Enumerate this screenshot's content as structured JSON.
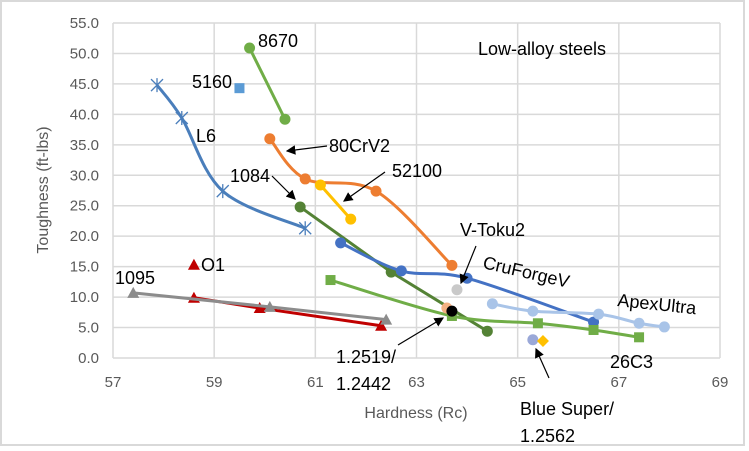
{
  "chart_data": {
    "type": "scatter",
    "title": "Low-alloy steels",
    "xlabel": "Hardness (Rc)",
    "ylabel": "Toughness (ft-lbs)",
    "xlim": [
      57,
      69
    ],
    "ylim": [
      0,
      55
    ],
    "xticks": [
      "57",
      "59",
      "61",
      "63",
      "65",
      "67",
      "69"
    ],
    "yticks": [
      "0.0",
      "5.0",
      "10.0",
      "15.0",
      "20.0",
      "25.0",
      "30.0",
      "35.0",
      "40.0",
      "45.0",
      "50.0",
      "55.0"
    ],
    "grid": true,
    "legend": "none",
    "series": [
      {
        "name": "L6",
        "color": "#4a7ebb",
        "marker": "star",
        "smooth": true,
        "points": [
          [
            57.87,
            44.8
          ],
          [
            58.36,
            39.4
          ],
          [
            59.17,
            27.4
          ],
          [
            60.8,
            21.3
          ]
        ]
      },
      {
        "name": "5160",
        "color": "#5b9bd5",
        "marker": "square",
        "smooth": false,
        "points": [
          [
            59.5,
            44.3
          ]
        ]
      },
      {
        "name": "8670",
        "color": "#70ad47",
        "marker": "circle",
        "smooth": false,
        "points": [
          [
            59.7,
            50.9
          ],
          [
            60.4,
            39.2
          ]
        ]
      },
      {
        "name": "80CrV2",
        "color": "#ed7d31",
        "marker": "circle",
        "smooth": true,
        "points": [
          [
            60.1,
            36.0
          ],
          [
            60.8,
            29.4
          ],
          [
            62.2,
            27.4
          ],
          [
            63.7,
            15.2
          ]
        ]
      },
      {
        "name": "52100",
        "color": "#ffc000",
        "marker": "circle",
        "smooth": false,
        "points": [
          [
            61.1,
            28.4
          ],
          [
            61.7,
            22.8
          ]
        ]
      },
      {
        "name": "1084",
        "color": "#548235",
        "marker": "circle",
        "smooth": false,
        "points": [
          [
            60.7,
            24.8
          ],
          [
            62.5,
            14.1
          ],
          [
            64.4,
            4.4
          ]
        ]
      },
      {
        "name": "CruForgeV",
        "color": "#4472c4",
        "marker": "circle",
        "smooth": true,
        "points": [
          [
            61.5,
            18.9
          ],
          [
            62.7,
            14.3
          ],
          [
            64.0,
            13.1
          ],
          [
            66.5,
            5.9
          ]
        ]
      },
      {
        "name": "V-Toku2",
        "color": "#c9c9c9",
        "marker": "circle",
        "smooth": false,
        "points": [
          [
            63.8,
            11.2
          ]
        ]
      },
      {
        "name": "26C3",
        "color": "#70ad47",
        "marker": "square",
        "smooth": true,
        "points": [
          [
            61.3,
            12.8
          ],
          [
            63.7,
            6.9
          ],
          [
            65.4,
            5.7
          ],
          [
            66.5,
            4.6
          ],
          [
            67.4,
            3.4
          ]
        ]
      },
      {
        "name": "ApexUltra",
        "color": "#a9c4e8",
        "marker": "circle",
        "smooth": true,
        "points": [
          [
            64.5,
            8.9
          ],
          [
            65.3,
            7.7
          ],
          [
            66.6,
            7.2
          ],
          [
            67.4,
            5.7
          ],
          [
            67.9,
            5.1
          ]
        ]
      },
      {
        "name": "1.2519",
        "color": "#f4b183",
        "marker": "circle",
        "smooth": false,
        "points": [
          [
            63.6,
            8.2
          ]
        ]
      },
      {
        "name": "1.2442",
        "color": "#000000",
        "marker": "circle",
        "smooth": false,
        "points": [
          [
            63.7,
            7.7
          ]
        ]
      },
      {
        "name": "Blue Super",
        "color": "#9aa8d8",
        "marker": "circle",
        "smooth": false,
        "points": [
          [
            65.3,
            3.0
          ]
        ]
      },
      {
        "name": "1.2562",
        "color": "#ffc000",
        "marker": "diamond",
        "smooth": false,
        "points": [
          [
            65.5,
            2.8
          ]
        ]
      },
      {
        "name": "O1",
        "color": "#c00000",
        "marker": "triangle",
        "smooth": false,
        "points": [
          [
            58.6,
            15.3
          ]
        ]
      },
      {
        "name": "O1 line",
        "color": "#c00000",
        "marker": "triangle",
        "smooth": false,
        "points": [
          [
            58.6,
            9.9
          ],
          [
            59.9,
            8.2
          ],
          [
            62.3,
            5.3
          ]
        ]
      },
      {
        "name": "1095",
        "color": "#8c8c8c",
        "marker": "triangle",
        "smooth": false,
        "points": [
          [
            57.4,
            10.7
          ],
          [
            60.1,
            8.4
          ],
          [
            62.4,
            6.3
          ]
        ]
      }
    ],
    "annotations": {
      "l6": "L6",
      "s5160": "5160",
      "s8670": "8670",
      "s80crv2": "80CrV2",
      "s52100": "52100",
      "s1084": "1084",
      "vtoku": "V-Toku2",
      "cruforge": "CruForgeV",
      "apex": "ApexUltra",
      "o1": "O1",
      "s1095": "1095",
      "s2519a": "1.2519/",
      "s2519b": "1.2442",
      "s26c3": "26C3",
      "bluea": "Blue Super/",
      "blueb": "1.2562"
    }
  }
}
